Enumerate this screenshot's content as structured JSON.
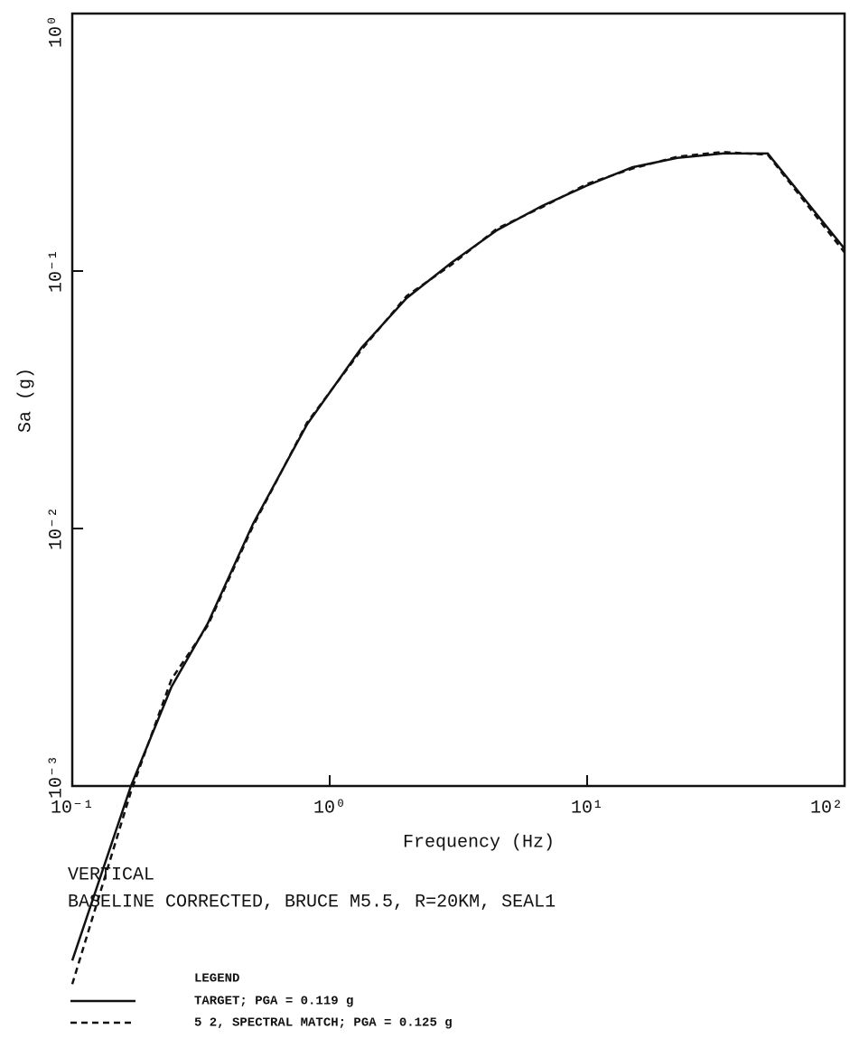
{
  "chart_data": {
    "type": "line",
    "xlabel": "Frequency (Hz)",
    "ylabel": "Sa (g)",
    "annotations": [
      "VERTICAL",
      "BASELINE CORRECTED, BRUCE M5.5, R=20KM, SEAL1"
    ],
    "legend_title": "LEGEND",
    "legend": "bottom-left",
    "log_x": true,
    "log_y": true,
    "xlim": [
      0.1,
      100
    ],
    "ylim": [
      0.001,
      1
    ],
    "xticks": [
      {
        "value": 0.1,
        "label": "10⁻¹"
      },
      {
        "value": 1,
        "label": "10⁰"
      },
      {
        "value": 10,
        "label": "10¹"
      },
      {
        "value": 100,
        "label": "10²"
      }
    ],
    "yticks": [
      {
        "value": 0.001,
        "label": "10⁻³"
      },
      {
        "value": 0.01,
        "label": "10⁻²"
      },
      {
        "value": 0.1,
        "label": "10⁻¹"
      },
      {
        "value": 1,
        "label": "10⁰"
      }
    ],
    "x": [
      0.1,
      0.169,
      0.243,
      0.336,
      0.503,
      0.817,
      1.33,
      1.99,
      2.98,
      4.46,
      6.68,
      10,
      15,
      22.4,
      33.6,
      50.3,
      100
    ],
    "series": [
      {
        "name": "TARGET; PGA = 0.119 g",
        "color": "#111111",
        "dash": "solid",
        "values": [
          0.00021,
          0.001,
          0.00243,
          0.00428,
          0.0104,
          0.0254,
          0.0504,
          0.0785,
          0.108,
          0.144,
          0.179,
          0.215,
          0.253,
          0.275,
          0.286,
          0.286,
          0.122
        ]
      },
      {
        "name": "5 2,  SPECTRAL MATCH; PGA = 0.125 g",
        "color": "#111111",
        "dash": "dashed",
        "values": [
          0.00017,
          0.00095,
          0.0026,
          0.0042,
          0.0102,
          0.0258,
          0.0495,
          0.08,
          0.106,
          0.146,
          0.177,
          0.218,
          0.25,
          0.278,
          0.29,
          0.283,
          0.118
        ]
      }
    ]
  }
}
